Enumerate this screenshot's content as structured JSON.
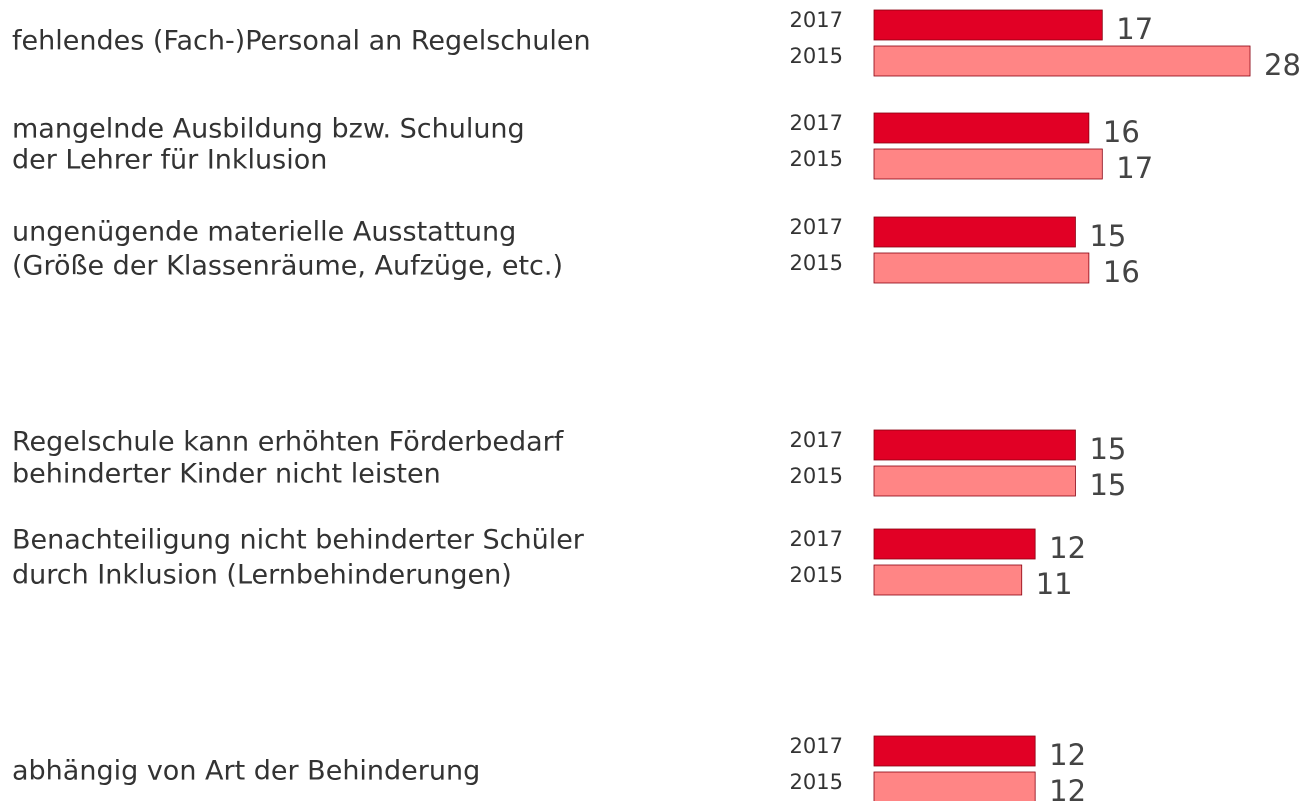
{
  "chart_data": {
    "type": "bar",
    "orientation": "horizontal",
    "categories": [
      [
        "fehlendes (Fach-)Personal an Regelschulen"
      ],
      [
        "mangelnde Ausbildung bzw. Schulung",
        "der Lehrer für Inklusion"
      ],
      [
        "ungenügende materielle Ausstattung",
        "(Größe der Klassenräume, Aufzüge, etc.)"
      ],
      [
        "Regelschule kann erhöhten Förderbedarf",
        "behinderter Kinder nicht leisten"
      ],
      [
        "Benachteiligung nicht behinderter Schüler",
        "durch Inklusion (Lernbehinderungen)"
      ],
      [
        "abhängig von Art der Behinderung"
      ]
    ],
    "series": [
      {
        "name": "2017",
        "color": "#e10025",
        "values": [
          17,
          16,
          15,
          15,
          12,
          12
        ]
      },
      {
        "name": "2015",
        "color": "#ff8585",
        "values": [
          28,
          17,
          16,
          15,
          11,
          12
        ]
      }
    ]
  }
}
